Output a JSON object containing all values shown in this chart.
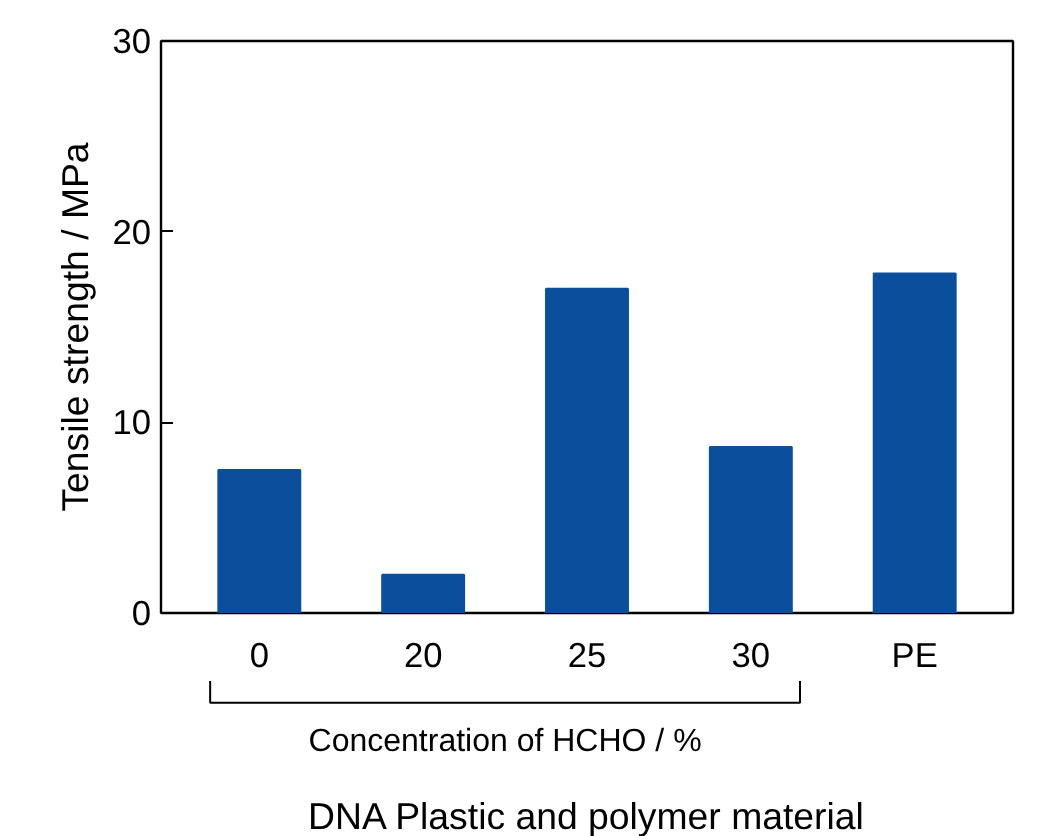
{
  "chart_data": {
    "type": "bar",
    "xlabel": "DNA Plastic and polymer material",
    "ylabel": "Tensile strength / MPa",
    "categories": [
      "0",
      "20",
      "25",
      "30",
      "PE"
    ],
    "values": [
      7.5,
      2.0,
      17.0,
      8.7,
      17.8
    ],
    "color": "#0b4f9c",
    "ylim": [
      0,
      30
    ],
    "yticks": [
      0,
      10,
      20,
      30
    ],
    "grid": false,
    "annotations": [
      "Concentration of HCHO / %"
    ]
  }
}
